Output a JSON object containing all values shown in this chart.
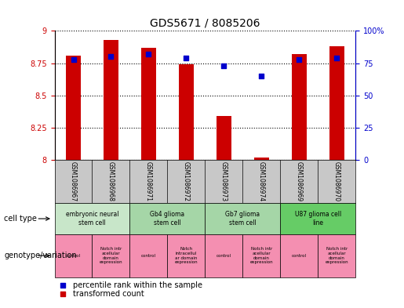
{
  "title": "GDS5671 / 8085206",
  "samples": [
    "GSM1086967",
    "GSM1086968",
    "GSM1086971",
    "GSM1086972",
    "GSM1086973",
    "GSM1086974",
    "GSM1086969",
    "GSM1086970"
  ],
  "transformed_count": [
    8.81,
    8.93,
    8.87,
    8.74,
    8.34,
    8.02,
    8.82,
    8.88
  ],
  "percentile_rank": [
    78,
    80,
    82,
    79,
    73,
    65,
    78,
    79
  ],
  "ylim_left": [
    8.0,
    9.0
  ],
  "ylim_right": [
    0,
    100
  ],
  "yticks_left": [
    8.0,
    8.25,
    8.5,
    8.75,
    9.0
  ],
  "ytick_labels_left": [
    "8",
    "8.25",
    "8.5",
    "8.75",
    "9"
  ],
  "yticks_right": [
    0,
    25,
    50,
    75,
    100
  ],
  "ytick_labels_right": [
    "0",
    "25",
    "50",
    "75",
    "100%"
  ],
  "cell_colors": [
    "#c8e6c9",
    "#a5d6a7",
    "#a5d6a7",
    "#66cc66"
  ],
  "cell_labels": [
    "embryonic neural\nstem cell",
    "Gb4 glioma\nstem cell",
    "Gb7 glioma\nstem cell",
    "U87 glioma cell\nline"
  ],
  "cell_ranges": [
    [
      0,
      2
    ],
    [
      2,
      4
    ],
    [
      4,
      6
    ],
    [
      6,
      8
    ]
  ],
  "geno_labels": [
    "control",
    "Notch intr\nacellular\ndomain\nexpression",
    "control",
    "Notch\nintracellul\nar domain\nexpression",
    "control",
    "Notch intr\nacellular\ndomain\nexpression",
    "control",
    "Notch intr\nacellular\ndomain\nexpression"
  ],
  "geno_color": "#f48fb1",
  "bar_color": "#cc0000",
  "dot_color": "#0000cc",
  "bar_width": 0.4,
  "left_axis_color": "#cc0000",
  "right_axis_color": "#0000cc",
  "sample_bg_color": "#c8c8c8",
  "tick_fontsize": 7,
  "title_fontsize": 10,
  "legend_label_tc": "transformed count",
  "legend_label_pr": "percentile rank within the sample"
}
